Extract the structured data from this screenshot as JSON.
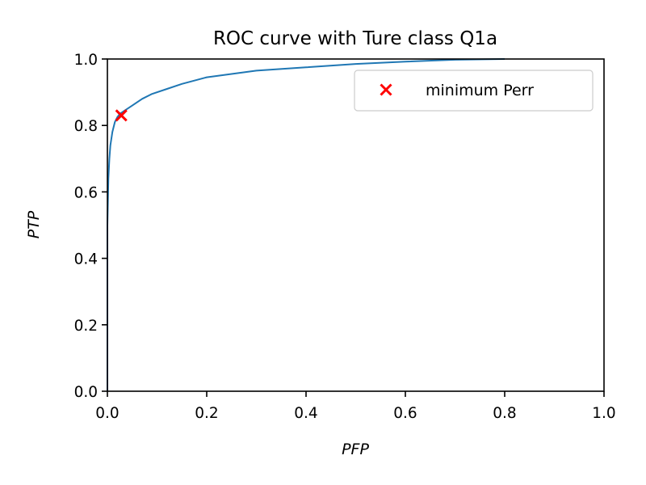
{
  "chart_data": {
    "type": "line",
    "title": "ROC curve with Ture class Q1a",
    "xlabel": "PFP",
    "ylabel": "PTP",
    "xlim": [
      0.0,
      1.0
    ],
    "ylim": [
      0.0,
      1.0
    ],
    "x_ticks": [
      "0.0",
      "0.2",
      "0.4",
      "0.6",
      "0.8",
      "1.0"
    ],
    "y_ticks": [
      "0.0",
      "0.2",
      "0.4",
      "0.6",
      "0.8",
      "1.0"
    ],
    "grid": false,
    "legend_position": "upper right",
    "series": [
      {
        "color": "#1f77b4",
        "x": [
          0.0,
          0.0,
          0.002,
          0.004,
          0.006,
          0.01,
          0.015,
          0.02,
          0.025,
          0.035,
          0.05,
          0.07,
          0.09,
          0.12,
          0.15,
          0.2,
          0.25,
          0.3,
          0.4,
          0.5,
          0.6,
          0.7,
          0.8
        ],
        "y": [
          0.0,
          0.5,
          0.64,
          0.7,
          0.74,
          0.78,
          0.81,
          0.825,
          0.835,
          0.845,
          0.86,
          0.88,
          0.895,
          0.91,
          0.925,
          0.945,
          0.955,
          0.965,
          0.975,
          0.985,
          0.992,
          0.998,
          1.0
        ]
      },
      {
        "name": "minimum Perr",
        "type": "scatter",
        "marker": "x",
        "color": "#ff0000",
        "x": [
          0.028
        ],
        "y": [
          0.83
        ]
      }
    ]
  }
}
